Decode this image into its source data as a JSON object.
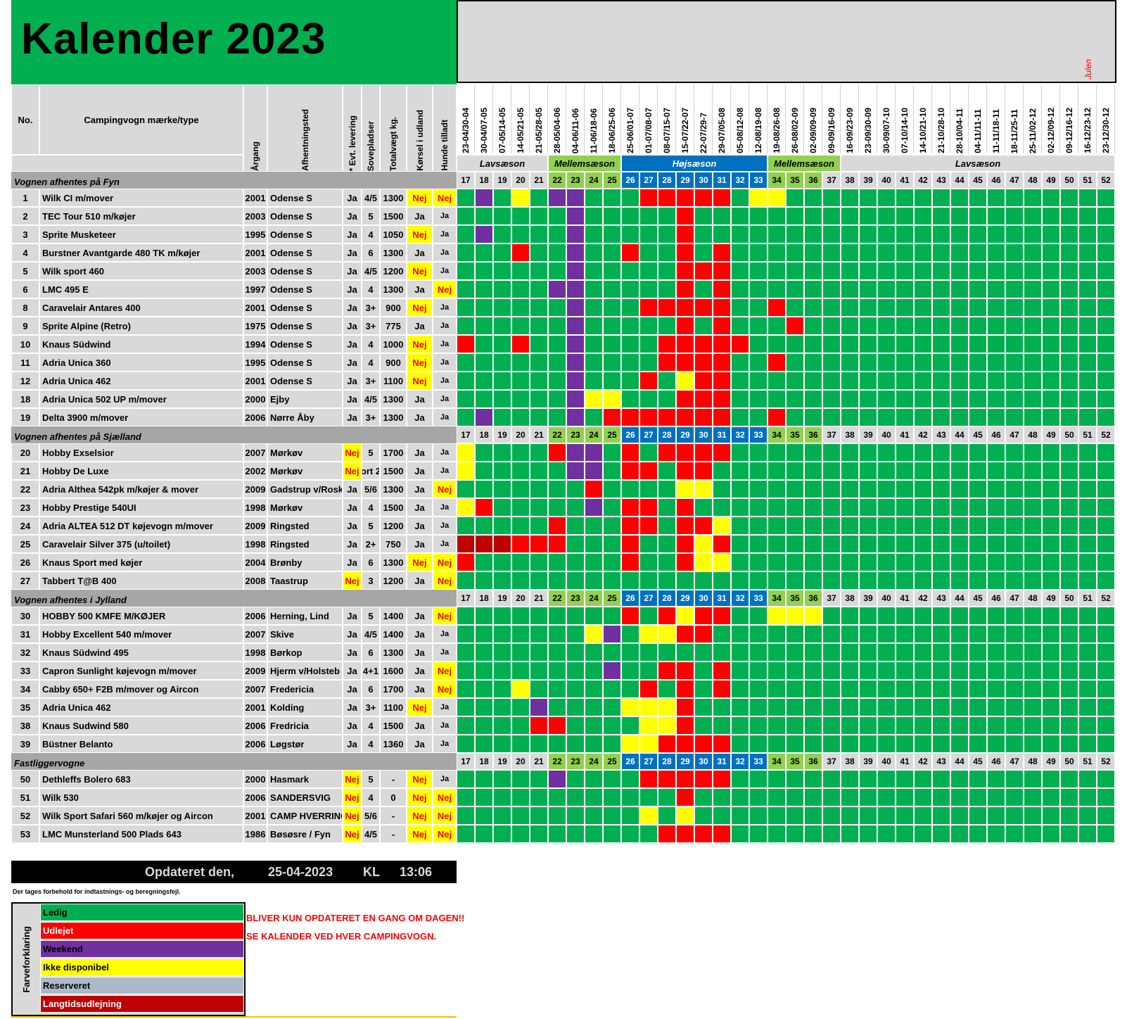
{
  "title": "Kalender 2023",
  "julen_note": "Julen",
  "headers": {
    "no": "No.",
    "type": "Campingvogn mærke/type",
    "year": "Årgang",
    "pickup": "Afhentningsted",
    "delivery": "* Evt. levering",
    "beds": "Sovepladser",
    "weight": "Totalvægt kg.",
    "abroad": "Kørsel i udland",
    "dogs": "Hunde tilladt"
  },
  "week_dates": [
    "23-04/30-04",
    "30-04/07-05",
    "07-05/14-05",
    "14-05/21-05",
    "21-05/28-05",
    "28-05/04-06",
    "04-06/11-06",
    "11-06/18-06",
    "18-06/25-06",
    "25-06/01-07",
    "01-07/08-07",
    "08-07/15-07",
    "15-07/22-07",
    "22-07/29-7",
    "29-07/05-08",
    "05-08/12-08",
    "12-08/19-08",
    "19-08/26-08",
    "26-08/02-09",
    "02-09/09-09",
    "09-09/16-09",
    "16-09/23-09",
    "23-09/30-09",
    "30-09/07-10",
    "07-10/14-10",
    "14-10/21-10",
    "21-10/28-10",
    "28-10/04-11",
    "04-11/11-11",
    "11-11/18-11",
    "18-11/25-11",
    "25-11/02-12",
    "02-12/09-12",
    "09-12/16-12",
    "16-12/23-12",
    "23-12/30-12"
  ],
  "weeks": [
    "17",
    "18",
    "19",
    "20",
    "21",
    "22",
    "23",
    "24",
    "25",
    "26",
    "27",
    "28",
    "29",
    "30",
    "31",
    "32",
    "33",
    "34",
    "35",
    "36",
    "37",
    "38",
    "39",
    "40",
    "41",
    "42",
    "43",
    "44",
    "45",
    "46",
    "47",
    "48",
    "49",
    "50",
    "51",
    "52"
  ],
  "seasons": [
    {
      "label": "Lavsæson",
      "start": 0,
      "span": 5,
      "type": "low"
    },
    {
      "label": "Mellemsæson",
      "start": 5,
      "span": 4,
      "type": "mid"
    },
    {
      "label": "Højsæson",
      "start": 9,
      "span": 8,
      "type": "high"
    },
    {
      "label": "Mellemsæson",
      "start": 17,
      "span": 4,
      "type": "mid"
    },
    {
      "label": "Lavsæson",
      "start": 21,
      "span": 15,
      "type": "low"
    }
  ],
  "colors": {
    "L": "#00b050",
    "U": "#ff0000",
    "W": "#7030a0",
    "I": "#ffff00",
    "R": "#acb9ca",
    "T": "#c00000",
    "header_grey": "#d9d9d9",
    "section_grey": "#a6a6a6",
    "season_low": "#d9d9d9",
    "season_mid": "#92d050",
    "season_high": "#0070c0"
  },
  "sections": [
    {
      "label": "Vognen afhentes på Fyn",
      "rows": [
        {
          "no": "1",
          "type": "Wilk CI m/mover",
          "year": "2001",
          "pickup": "Odense S",
          "delivery": "Ja",
          "beds": "4/5",
          "weight": "1300",
          "abroad": "Nej",
          "dogs": "Nej",
          "cal": "LWLILWWLLLUUUUULIILLLLLLLLLLLLLLLLLL"
        },
        {
          "no": "2",
          "type": "TEC Tour 510 m/køjer",
          "year": "2003",
          "pickup": "Odense S",
          "delivery": "Ja",
          "beds": "5",
          "weight": "1500",
          "abroad": "Ja",
          "dogs": "Ja",
          "cal": "LLLLLLWLLLLLULLLLLLLLLLLLLLLLLLLLLLL"
        },
        {
          "no": "3",
          "type": "Sprite Musketeer",
          "year": "1995",
          "pickup": "Odense S",
          "delivery": "Ja",
          "beds": "4",
          "weight": "1050",
          "abroad": "Nej",
          "dogs": "Ja",
          "cal": "LWLLLLWLLLLLULLLLLLLLLLLLLLLLLLLLLLL"
        },
        {
          "no": "4",
          "type": "Burstner Avantgarde 480 TK m/køjer",
          "year": "2001",
          "pickup": "Odense S",
          "delivery": "Ja",
          "beds": "6",
          "weight": "1300",
          "abroad": "Ja",
          "dogs": "Ja",
          "cal": "LLLULLWLLULLULULLLLLLLLLLLLLLLLLLLLL"
        },
        {
          "no": "5",
          "type": "Wilk sport 460",
          "year": "2003",
          "pickup": "Odense S",
          "delivery": "Ja",
          "beds": "4/5",
          "weight": "1200",
          "abroad": "Nej",
          "dogs": "Ja",
          "cal": "LLLLLLWLLLLLUUULLLLLLLLLLLLLLLLLLLLL"
        },
        {
          "no": "6",
          "type": "LMC 495 E",
          "year": "1997",
          "pickup": "Odense S",
          "delivery": "Ja",
          "beds": "4",
          "weight": "1300",
          "abroad": "Ja",
          "dogs": "Nej",
          "cal": "LLLLLWWLLLLLULULLLLLLLLLLLLLLLLLLLLL"
        },
        {
          "no": "8",
          "type": "Caravelair Antares 400",
          "year": "2001",
          "pickup": "Odense S",
          "delivery": "Ja",
          "beds": "3+",
          "weight": "900",
          "abroad": "Nej",
          "dogs": "Ja",
          "cal": "LLLLLLWLLLUUUUULLULLLLLLLLLLLLLLLLLL"
        },
        {
          "no": "9",
          "type": "Sprite Alpine (Retro)",
          "year": "1975",
          "pickup": "Odense S",
          "delivery": "Ja",
          "beds": "3+",
          "weight": "775",
          "abroad": "Ja",
          "dogs": "Ja",
          "cal": "LLLLLLWLLLLLULULLLULLLLLLLLLLLLLLLLL"
        },
        {
          "no": "10",
          "type": "Knaus Südwind",
          "year": "1994",
          "pickup": "Odense S",
          "delivery": "Ja",
          "beds": "4",
          "weight": "1000",
          "abroad": "Nej",
          "dogs": "Ja",
          "cal": "ULLULLWLLLLUUUUULLLLLLLLLLLLLLLLLLLL"
        },
        {
          "no": "11",
          "type": "Adria Unica 360",
          "year": "1995",
          "pickup": "Odense S",
          "delivery": "Ja",
          "beds": "4",
          "weight": "900",
          "abroad": "Nej",
          "dogs": "Ja",
          "cal": "LLLLLLWLLLLUUUULLULLLLLLLLLLLLLLLLLL"
        },
        {
          "no": "12",
          "type": "Adria Unica 462",
          "year": "2001",
          "pickup": "Odense S",
          "delivery": "Ja",
          "beds": "3+",
          "weight": "1100",
          "abroad": "Nej",
          "dogs": "Ja",
          "cal": "LLLLLLWLLLULIUULLLLLLLLLLLLLLLLLLLLL"
        },
        {
          "no": "18",
          "type": "Adria Unica 502 UP m/mover",
          "year": "2000",
          "pickup": "Ejby",
          "delivery": "Ja",
          "beds": "4/5",
          "weight": "1300",
          "abroad": "Ja",
          "dogs": "Ja",
          "cal": "LLLLLLWIILLLUUULLLLLLLLLLLLLLLLLLLLL"
        },
        {
          "no": "19",
          "type": "Delta 3900 m/mover",
          "year": "2006",
          "pickup": "Nørre Åby",
          "delivery": "Ja",
          "beds": "3+",
          "weight": "1300",
          "abroad": "Ja",
          "dogs": "Ja",
          "cal": "LWLLLLWLUUUUUUULLULLLLLLLLLLLLLLLLLL"
        }
      ]
    },
    {
      "label": "Vognen afhentes på Sjælland",
      "rows": [
        {
          "no": "20",
          "type": "Hobby Exselsior",
          "year": "2007",
          "pickup": "Mørkøv",
          "delivery": "Nej",
          "beds": "5",
          "weight": "1700",
          "abroad": "Ja",
          "dogs": "Ja",
          "cal": "ILLLLUWWLULUUUULLLLLLLLLLLLLLLLLLLLL"
        },
        {
          "no": "21",
          "type": "Hobby De Luxe",
          "year": "2002",
          "pickup": "Mørkøv",
          "delivery": "Nej",
          "beds": "ort 2",
          "weight": "1500",
          "abroad": "Ja",
          "dogs": "Ja",
          "cal": "ILLLLLWWLUULUULLLLLLLLLLLLLLLLLLLLLL"
        },
        {
          "no": "22",
          "type": "Adria Althea 542pk m/køjer & mover",
          "year": "2009",
          "pickup": "Gadstrup v/Rosk",
          "delivery": "Ja",
          "beds": "5/6",
          "weight": "1300",
          "abroad": "Ja",
          "dogs": "Nej",
          "cal": "LLLLLLLULLLLIILLLLLLLLLLLLLLLLLLLLLL"
        },
        {
          "no": "23",
          "type": "Hobby Prestige 540UI",
          "year": "1998",
          "pickup": "Mørkøv",
          "delivery": "Ja",
          "beds": "4",
          "weight": "1500",
          "abroad": "Ja",
          "dogs": "Ja",
          "cal": "IULLLLLWLUULULLLLLLLLLLLLLLLLLLLLLLL"
        },
        {
          "no": "24",
          "type": "Adria ALTEA 512 DT  køjevogn m/mover",
          "year": "2009",
          "pickup": "Ringsted",
          "delivery": "Ja",
          "beds": "5",
          "weight": "1200",
          "abroad": "Ja",
          "dogs": "Ja",
          "cal": "LLLLLULLLUULUUILLLLLLLLLLLLLLLLLLLLL"
        },
        {
          "no": "25",
          "type": "Caravelair Silver 375 (u/toilet)",
          "year": "1998",
          "pickup": "Ringsted",
          "delivery": "Ja",
          "beds": "2+",
          "weight": "750",
          "abroad": "Ja",
          "dogs": "Ja",
          "cal": "TTTUUULLLULLUIULLLLLLLLLLLLLLLLLLLLL"
        },
        {
          "no": "26",
          "type": "Knaus Sport med køjer",
          "year": "2004",
          "pickup": "Brønby",
          "delivery": "Ja",
          "beds": "6",
          "weight": "1300",
          "abroad": "Nej",
          "dogs": "Nej",
          "cal": "ULLLLLLLLULLUIILLLLLLLLLLLLLLLLLLLLL"
        },
        {
          "no": "27",
          "type": "Tabbert T@B 400",
          "year": "2008",
          "pickup": "Taastrup",
          "delivery": "Nej",
          "beds": "3",
          "weight": "1200",
          "abroad": "Ja",
          "dogs": "Nej",
          "cal": "LLLLLLLLLLLLLLLLLLLLLLLLLLLLLLLLLLLL"
        }
      ]
    },
    {
      "label": "Vognen afhentes i Jylland",
      "rows": [
        {
          "no": "30",
          "type": "HOBBY 500 KMFE M/KØJER",
          "year": "2006",
          "pickup": "Herning, Lind",
          "delivery": "Ja",
          "beds": "5",
          "weight": "1400",
          "abroad": "Ja",
          "dogs": "Nej",
          "cal": "LLLLLLLLLULUIUULLIIILLLLLLLLLLLLLLLL"
        },
        {
          "no": "31",
          "type": "Hobby Excellent 540 m/mover",
          "year": "2007",
          "pickup": "Skive",
          "delivery": "Ja",
          "beds": "4/5",
          "weight": "1400",
          "abroad": "Ja",
          "dogs": "Ja",
          "cal": "LLLLLLLIWLIIUULLLLLLLLLLLLLLLLLLLLLL"
        },
        {
          "no": "32",
          "type": "Knaus Südwind 495",
          "year": "1998",
          "pickup": "Børkop",
          "delivery": "Ja",
          "beds": "6",
          "weight": "1300",
          "abroad": "Ja",
          "dogs": "Ja",
          "cal": "LLLLLLLLLLLLLLLLLLLLLLLLLLLLLLLLLLLL"
        },
        {
          "no": "33",
          "type": "Capron Sunlight køjevogn m/mover",
          "year": "2009",
          "pickup": "Hjerm v/Holsteb",
          "delivery": "Ja",
          "beds": "4+1",
          "weight": "1600",
          "abroad": "Ja",
          "dogs": "Nej",
          "cal": "LLLLLLLLWLLUULULLLLLLLLLLLLLLLLLLLLL"
        },
        {
          "no": "34",
          "type": "Cabby 650+ F2B m/mover og Aircon",
          "year": "2007",
          "pickup": " Fredericia",
          "delivery": "Ja",
          "beds": "6",
          "weight": "1700",
          "abroad": "Ja",
          "dogs": "Nej",
          "cal": "LLLILLLLLLULULULLLLLLLLLLLLLLLLLLLLL"
        },
        {
          "no": "35",
          "type": "Adria Unica 462",
          "year": "2001",
          "pickup": "Kolding",
          "delivery": "Ja",
          "beds": "3+",
          "weight": "1100",
          "abroad": "Nej",
          "dogs": "Ja",
          "cal": "LLLLWLLLLIIIULLLLLLLLLLLLLLLLLLLLLLL"
        },
        {
          "no": "38",
          "type": "Knaus Sudwind 580",
          "year": "2006",
          "pickup": "Fredricia",
          "delivery": "Ja",
          "beds": "4",
          "weight": "1500",
          "abroad": "Ja",
          "dogs": "Ja",
          "cal": "LLLLUULLLLIIULLLLLLLLLLLLLLLLLLLLLLL"
        },
        {
          "no": "39",
          "type": "Büstner Belanto",
          "year": "2006",
          "pickup": "Løgstør",
          "delivery": "Ja",
          "beds": "4",
          "weight": "1360",
          "abroad": "Ja",
          "dogs": "Ja",
          "cal": "LLLLLLLLLIIUUUULLLLLLLLLLLLLLLLLLLLL"
        }
      ]
    },
    {
      "label": "Fastliggervogne",
      "rows": [
        {
          "no": "50",
          "type": "Dethleffs Bolero 683",
          "year": "2000",
          "pickup": "Hasmark",
          "delivery": "Nej",
          "beds": "5",
          "weight": "-",
          "abroad": "Nej",
          "dogs": "Ja",
          "cal": "LLLLLWLLLLUUUUULLLLLLLLLLLLLLLLLLLLL"
        },
        {
          "no": "51",
          "type": "Wilk 530",
          "year": "2006",
          "pickup": "SANDERSVIG",
          "delivery": "Nej",
          "beds": "4",
          "weight": "0",
          "abroad": "Nej",
          "dogs": "Nej",
          "cal": "LLLLLLLLLLLLULLLLLLLLLLLLLLLLLLLLLLL"
        },
        {
          "no": "52",
          "type": "Wilk Sport Safari 560 m/køjer og Aircon",
          "year": "2001",
          "pickup": "CAMP HVERRING",
          "delivery": "Nej",
          "beds": "5/6",
          "weight": "-",
          "abroad": "Nej",
          "dogs": "Nej",
          "cal": "LLLLLLLLLLILILLLLLLLLLLLLLLLLLLLLLLL"
        },
        {
          "no": "53",
          "type": "LMC Munsterland 500 Plads 643",
          "year": "1986",
          "pickup": "Bøsøsre / Fyn",
          "delivery": "Nej",
          "beds": "4/5",
          "weight": "-",
          "abroad": "Nej",
          "dogs": "Nej",
          "cal": "LLLLLLLLLLLUUUULLLLLLLLLLLLLLLLLLLLL"
        }
      ]
    }
  ],
  "updated": {
    "label": "Opdateret den,",
    "date": "25-04-2023",
    "kl": "KL",
    "time": "13:06"
  },
  "disclaimer": "Der tages forbehold for indtastnings- og beregningsfejl.",
  "legend": {
    "title": "Farveforklaring",
    "items": [
      {
        "label": "Ledig",
        "key": "L"
      },
      {
        "label": "Udlejet",
        "key": "U"
      },
      {
        "label": "Weekend",
        "key": "W"
      },
      {
        "label": "Ikke disponibel",
        "key": "I"
      },
      {
        "label": "Reserveret",
        "key": "R"
      },
      {
        "label": "Langtidsudlejning",
        "key": "T"
      }
    ]
  },
  "notices": [
    "BLIVER KUN OPDATERET EN GANG OM DAGEN!!",
    "SE KALENDER VED HVER CAMPINGVOGN."
  ]
}
